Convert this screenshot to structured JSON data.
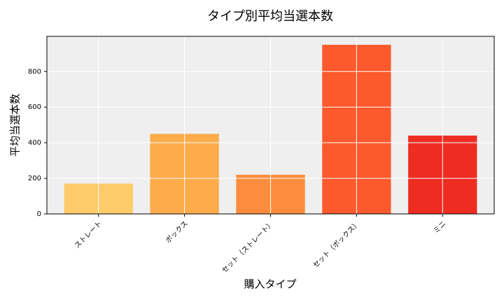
{
  "chart_data": {
    "type": "bar",
    "title": "タイプ別平均当選本数",
    "x_label": "購入タイプ",
    "y_label": "平均当選本数",
    "categories": [
      "ストレート",
      "ボックス",
      "セット（ストレート）",
      "セット（ボックス）",
      "ミニ"
    ],
    "values": [
      170,
      450,
      220,
      950,
      440
    ],
    "colors": [
      "#fecb6a",
      "#fdab4b",
      "#fd8d3c",
      "#fc5a2d",
      "#ee2d22"
    ],
    "ylim": [
      0,
      997.5
    ],
    "yticks": [
      0,
      200,
      400,
      600,
      800
    ],
    "grid": true
  }
}
